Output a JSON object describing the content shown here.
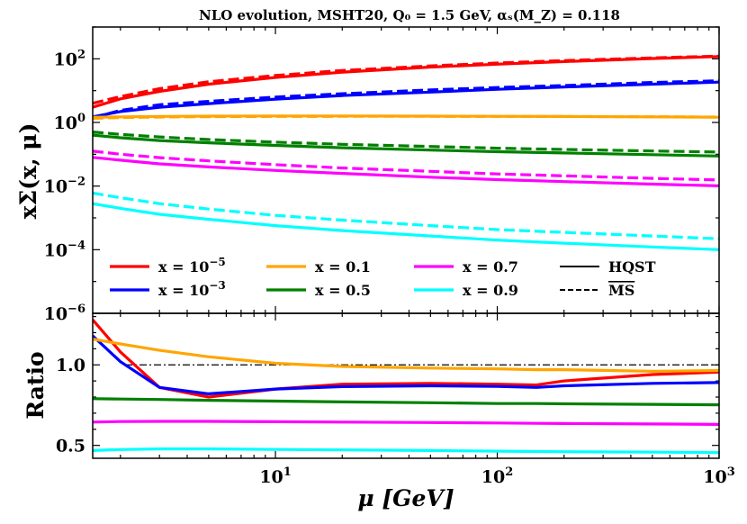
{
  "chart_data": [
    {
      "type": "line",
      "panel": "top",
      "title": "NLO evolution, MSHT20, Q₀ = 1.5 GeV, αₛ(M_Z) = 0.118",
      "xlabel": "μ [GeV]",
      "ylabel": "xΣ(x, μ)",
      "xscale": "log",
      "yscale": "log",
      "xlim": [
        1.5,
        1000
      ],
      "ylim": [
        1e-06,
        1000
      ],
      "x": [
        1.5,
        2,
        3,
        5,
        10,
        20,
        50,
        100,
        200,
        500,
        1000
      ],
      "y_tick_labels": [
        "10^{-6}",
        "10^{-4}",
        "10^{-2}",
        "10^{0}",
        "10^{2}"
      ],
      "series": [
        {
          "name": "x = 10^-5",
          "scheme": "HQST",
          "color": "#ff0000",
          "values": [
            3.0,
            5.5,
            9.5,
            16,
            26,
            38,
            55,
            68,
            82,
            102,
            118
          ]
        },
        {
          "name": "x = 10^-5",
          "scheme": "MSbar",
          "color": "#ff0000",
          "values": [
            4.0,
            6.5,
            11.5,
            19,
            30,
            43,
            60,
            74,
            88,
            107,
            122
          ]
        },
        {
          "name": "x = 10^-3",
          "scheme": "HQST",
          "color": "#0000ff",
          "values": [
            1.5,
            2.2,
            3.0,
            3.9,
            5.4,
            7.0,
            9.0,
            11.0,
            13.0,
            16.0,
            18.5
          ]
        },
        {
          "name": "x = 10^-3",
          "scheme": "MSbar",
          "color": "#0000ff",
          "values": [
            1.4,
            2.4,
            3.6,
            4.6,
            6.3,
            8.0,
            10.5,
            12.5,
            14.5,
            18.0,
            20.5
          ]
        },
        {
          "name": "x = 0.1",
          "scheme": "HQST",
          "color": "#ffa500",
          "values": [
            1.45,
            1.5,
            1.55,
            1.58,
            1.6,
            1.6,
            1.58,
            1.56,
            1.54,
            1.5,
            1.46
          ]
        },
        {
          "name": "x = 0.1",
          "scheme": "MSbar",
          "color": "#ffa500",
          "values": [
            1.35,
            1.42,
            1.48,
            1.52,
            1.55,
            1.56,
            1.56,
            1.55,
            1.54,
            1.51,
            1.48
          ]
        },
        {
          "name": "x = 0.5",
          "scheme": "HQST",
          "color": "#008000",
          "values": [
            0.4,
            0.33,
            0.27,
            0.23,
            0.19,
            0.16,
            0.135,
            0.12,
            0.11,
            0.097,
            0.088
          ]
        },
        {
          "name": "x = 0.5",
          "scheme": "MSbar",
          "color": "#008000",
          "values": [
            0.5,
            0.42,
            0.35,
            0.29,
            0.24,
            0.205,
            0.175,
            0.155,
            0.142,
            0.127,
            0.117
          ]
        },
        {
          "name": "x = 0.7",
          "scheme": "HQST",
          "color": "#ff00ff",
          "values": [
            0.08,
            0.065,
            0.05,
            0.04,
            0.031,
            0.025,
            0.019,
            0.016,
            0.0138,
            0.0115,
            0.0102
          ]
        },
        {
          "name": "x = 0.7",
          "scheme": "MSbar",
          "color": "#ff00ff",
          "values": [
            0.125,
            0.1,
            0.078,
            0.062,
            0.047,
            0.037,
            0.029,
            0.024,
            0.021,
            0.0175,
            0.0155
          ]
        },
        {
          "name": "x = 0.9",
          "scheme": "HQST",
          "color": "#00ffff",
          "values": [
            0.0028,
            0.002,
            0.0013,
            0.0009,
            0.00057,
            0.0004,
            0.00027,
            0.0002,
            0.00016,
            0.000122,
            0.0001
          ]
        },
        {
          "name": "x = 0.9",
          "scheme": "MSbar",
          "color": "#00ffff",
          "values": [
            0.006,
            0.0043,
            0.0028,
            0.0019,
            0.0012,
            0.00085,
            0.00057,
            0.00043,
            0.00035,
            0.00027,
            0.00022
          ]
        }
      ],
      "legend": {
        "position": "lower-left",
        "entries": [
          {
            "label": "x = 10^{-5}",
            "color": "#ff0000",
            "style": "solid"
          },
          {
            "label": "x = 10^{-3}",
            "color": "#0000ff",
            "style": "solid"
          },
          {
            "label": "x = 0.1",
            "color": "#ffa500",
            "style": "solid"
          },
          {
            "label": "x = 0.5",
            "color": "#008000",
            "style": "solid"
          },
          {
            "label": "x = 0.7",
            "color": "#ff00ff",
            "style": "solid"
          },
          {
            "label": "x = 0.9",
            "color": "#00ffff",
            "style": "solid"
          },
          {
            "label": "HQST",
            "color": "#000000",
            "style": "solid"
          },
          {
            "label": "MS",
            "color": "#000000",
            "style": "dashed",
            "overline": true
          }
        ]
      }
    },
    {
      "type": "line",
      "panel": "bottom",
      "xlabel": "μ [GeV]",
      "ylabel": "Ratio",
      "xscale": "log",
      "xlim": [
        1.5,
        1000
      ],
      "ylim": [
        0.42,
        1.32
      ],
      "reference_line": 1.0,
      "x": [
        1.5,
        2,
        3,
        5,
        10,
        20,
        50,
        100,
        150,
        200,
        500,
        1000
      ],
      "y_tick_labels": [
        "0.5",
        "1.0"
      ],
      "x_tick_labels": [
        "10^{1}",
        "10^{2}",
        "10^{3}"
      ],
      "series": [
        {
          "name": "x = 10^-5",
          "color": "#ff0000",
          "values": [
            1.28,
            1.08,
            0.86,
            0.8,
            0.85,
            0.88,
            0.885,
            0.88,
            0.875,
            0.9,
            0.94,
            0.955
          ]
        },
        {
          "name": "x = 10^-3",
          "color": "#0000ff",
          "values": [
            1.18,
            1.02,
            0.86,
            0.82,
            0.85,
            0.865,
            0.87,
            0.866,
            0.86,
            0.87,
            0.885,
            0.89
          ]
        },
        {
          "name": "x = 0.1",
          "color": "#ffa500",
          "values": [
            1.16,
            1.13,
            1.09,
            1.05,
            1.01,
            0.99,
            0.98,
            0.975,
            0.97,
            0.97,
            0.96,
            0.965
          ]
        },
        {
          "name": "x = 0.5",
          "color": "#008000",
          "values": [
            0.79,
            0.788,
            0.785,
            0.78,
            0.775,
            0.77,
            0.765,
            0.76,
            0.76,
            0.758,
            0.755,
            0.752
          ]
        },
        {
          "name": "x = 0.7",
          "color": "#ff00ff",
          "values": [
            0.645,
            0.648,
            0.649,
            0.649,
            0.647,
            0.645,
            0.642,
            0.639,
            0.637,
            0.636,
            0.633,
            0.63
          ]
        },
        {
          "name": "x = 0.9",
          "color": "#00ffff",
          "values": [
            0.468,
            0.474,
            0.478,
            0.478,
            0.475,
            0.472,
            0.468,
            0.464,
            0.462,
            0.461,
            0.458,
            0.455
          ]
        }
      ]
    }
  ]
}
